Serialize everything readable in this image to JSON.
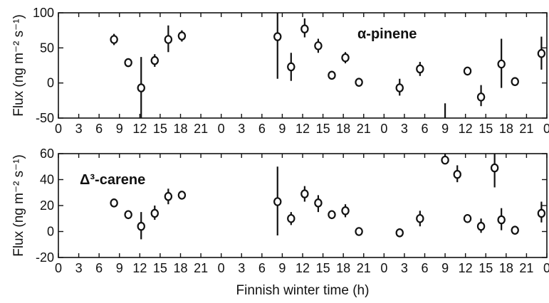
{
  "chart_data": {
    "type": "scatter",
    "xlabel": "Finnish winter time (h)",
    "x_ticks": [
      "0",
      "3",
      "6",
      "9",
      "12",
      "15",
      "18",
      "21",
      "0",
      "3",
      "6",
      "9",
      "12",
      "15",
      "18",
      "21",
      "0",
      "3",
      "6",
      "9",
      "12",
      "15",
      "18",
      "21",
      "0"
    ],
    "x_range_hours": [
      0,
      72
    ],
    "panels": [
      {
        "title": "α-pinene",
        "ylabel": "Flux (ng m⁻² s⁻¹)",
        "ylim": [
          -50,
          100
        ],
        "yticks": [
          "-50",
          "0",
          "50",
          "100"
        ],
        "points": [
          {
            "t": 8.2,
            "y": 62,
            "lo": 54,
            "hi": 70
          },
          {
            "t": 10.3,
            "y": 29,
            "lo": 29,
            "hi": 29
          },
          {
            "t": 12.2,
            "y": -7,
            "lo": -50,
            "hi": 37
          },
          {
            "t": 14.2,
            "y": 32,
            "lo": 23,
            "hi": 41
          },
          {
            "t": 16.2,
            "y": 62,
            "lo": 44,
            "hi": 82
          },
          {
            "t": 18.2,
            "y": 67,
            "lo": 59,
            "hi": 75
          },
          {
            "t": 32.3,
            "y": 66,
            "lo": 6,
            "hi": 100
          },
          {
            "t": 34.3,
            "y": 23,
            "lo": 3,
            "hi": 43
          },
          {
            "t": 36.3,
            "y": 77,
            "lo": 65,
            "hi": 92
          },
          {
            "t": 38.3,
            "y": 53,
            "lo": 43,
            "hi": 63
          },
          {
            "t": 40.3,
            "y": 11,
            "lo": 11,
            "hi": 11
          },
          {
            "t": 42.3,
            "y": 36,
            "lo": 28,
            "hi": 44
          },
          {
            "t": 44.3,
            "y": 1,
            "lo": 1,
            "hi": 1
          },
          {
            "t": 50.3,
            "y": -7,
            "lo": -18,
            "hi": 6
          },
          {
            "t": 53.3,
            "y": 20,
            "lo": 10,
            "hi": 30
          },
          {
            "t": 57.0,
            "y": null,
            "lo": -50,
            "hi": -29
          },
          {
            "t": 60.3,
            "y": 17,
            "lo": 17,
            "hi": 17
          },
          {
            "t": 62.3,
            "y": -20,
            "lo": -33,
            "hi": -3
          },
          {
            "t": 65.3,
            "y": 27,
            "lo": -7,
            "hi": 63
          },
          {
            "t": 67.3,
            "y": 2,
            "lo": 2,
            "hi": 2
          },
          {
            "t": 71.2,
            "y": 42,
            "lo": 19,
            "hi": 66
          }
        ]
      },
      {
        "title": "Δ³-carene",
        "ylabel": "Flux (ng m⁻² s⁻¹)",
        "ylim": [
          -20,
          60
        ],
        "yticks": [
          "-20",
          "0",
          "20",
          "40",
          "60"
        ],
        "points": [
          {
            "t": 8.2,
            "y": 22,
            "lo": 22,
            "hi": 22
          },
          {
            "t": 10.3,
            "y": 13,
            "lo": 13,
            "hi": 13
          },
          {
            "t": 12.2,
            "y": 4,
            "lo": -6,
            "hi": 15
          },
          {
            "t": 14.2,
            "y": 14,
            "lo": 9,
            "hi": 20
          },
          {
            "t": 16.2,
            "y": 27,
            "lo": 21,
            "hi": 33
          },
          {
            "t": 18.2,
            "y": 28,
            "lo": 28,
            "hi": 28
          },
          {
            "t": 32.3,
            "y": 23,
            "lo": -3,
            "hi": 50
          },
          {
            "t": 34.3,
            "y": 10,
            "lo": 5,
            "hi": 15
          },
          {
            "t": 36.3,
            "y": 29,
            "lo": 23,
            "hi": 35
          },
          {
            "t": 38.3,
            "y": 22,
            "lo": 15,
            "hi": 28
          },
          {
            "t": 40.3,
            "y": 13,
            "lo": 13,
            "hi": 13
          },
          {
            "t": 42.3,
            "y": 16,
            "lo": 11,
            "hi": 21
          },
          {
            "t": 44.3,
            "y": 0,
            "lo": 0,
            "hi": 0
          },
          {
            "t": 50.3,
            "y": -1,
            "lo": -1,
            "hi": -1
          },
          {
            "t": 53.3,
            "y": 10,
            "lo": 4,
            "hi": 16
          },
          {
            "t": 57.0,
            "y": 55,
            "lo": 52,
            "hi": 60
          },
          {
            "t": 58.8,
            "y": 44,
            "lo": 38,
            "hi": 51
          },
          {
            "t": 60.3,
            "y": 10,
            "lo": 10,
            "hi": 10
          },
          {
            "t": 62.3,
            "y": 4,
            "lo": -1,
            "hi": 10
          },
          {
            "t": 64.3,
            "y": 49,
            "lo": 34,
            "hi": 60
          },
          {
            "t": 65.3,
            "y": 9,
            "lo": 1,
            "hi": 18
          },
          {
            "t": 67.3,
            "y": 1,
            "lo": 1,
            "hi": 1
          },
          {
            "t": 71.2,
            "y": 14,
            "lo": 7,
            "hi": 23
          }
        ]
      }
    ]
  }
}
